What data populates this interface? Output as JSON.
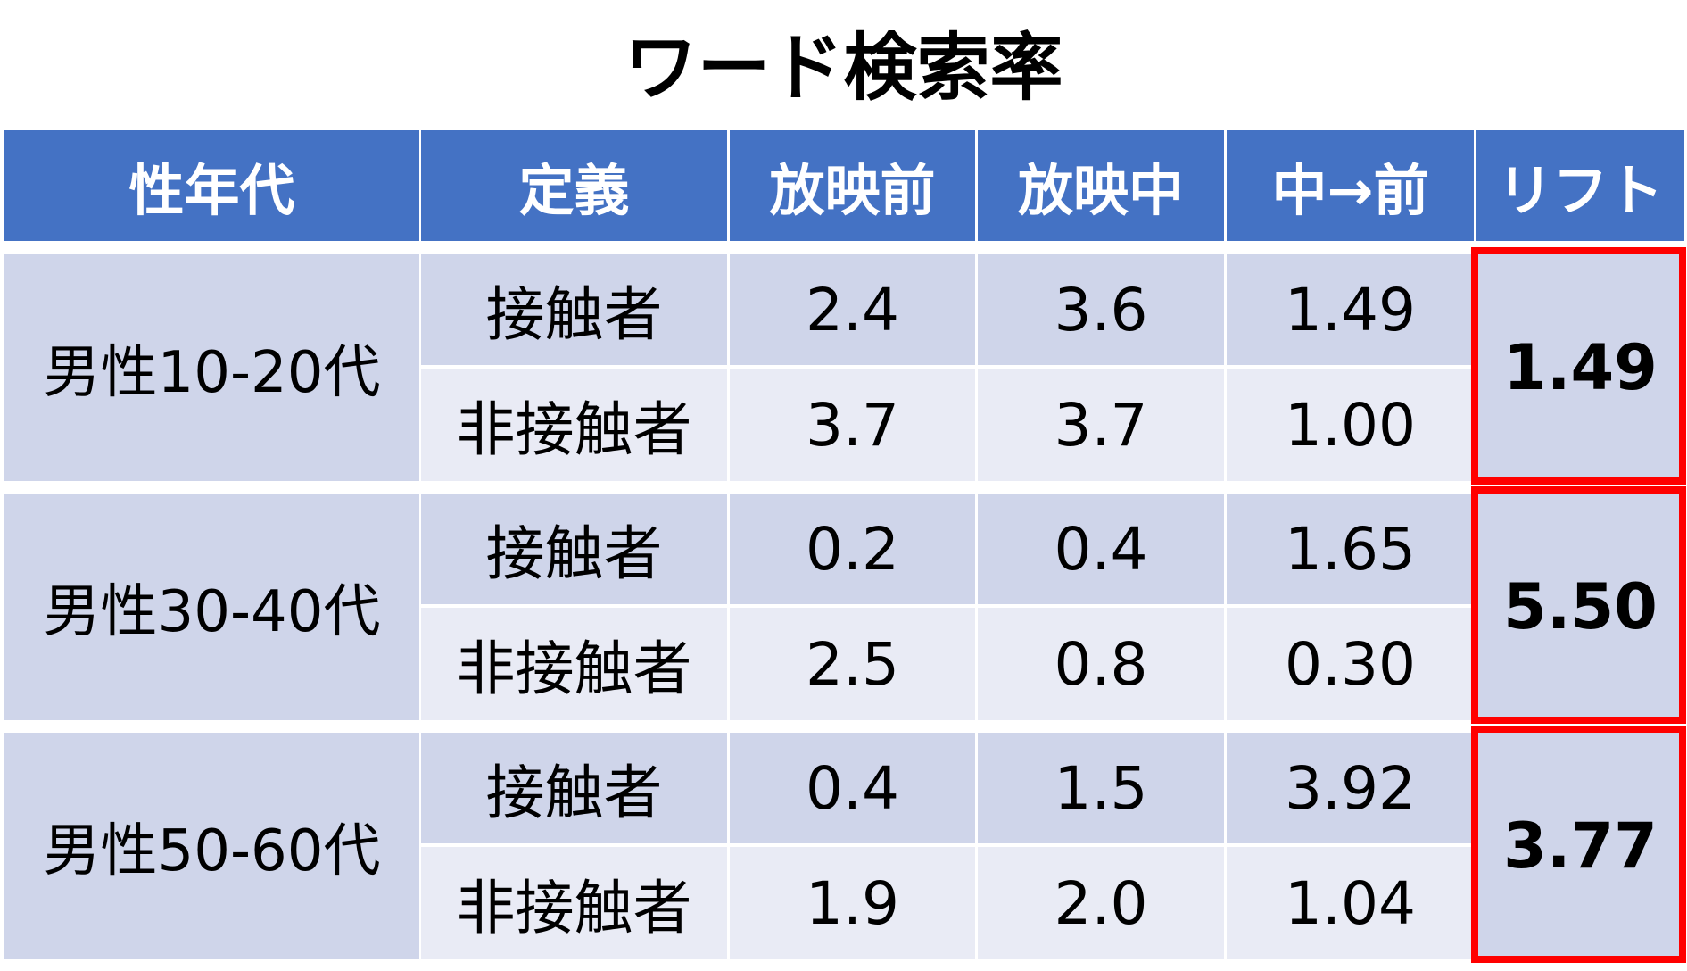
{
  "chart_data": {
    "type": "table",
    "title": "ワード検索率",
    "columns": [
      "性年代",
      "定義",
      "放映前",
      "放映中",
      "中→前",
      "リフト"
    ],
    "groups": [
      {
        "label": "男性10-20代",
        "lift": "1.49",
        "rows": [
          {
            "definition": "接触者",
            "before": "2.4",
            "during": "3.6",
            "ratio": "1.49"
          },
          {
            "definition": "非接触者",
            "before": "3.7",
            "during": "3.7",
            "ratio": "1.00"
          }
        ]
      },
      {
        "label": "男性30-40代",
        "lift": "5.50",
        "rows": [
          {
            "definition": "接触者",
            "before": "0.2",
            "during": "0.4",
            "ratio": "1.65"
          },
          {
            "definition": "非接触者",
            "before": "2.5",
            "during": "0.8",
            "ratio": "0.30"
          }
        ]
      },
      {
        "label": "男性50-60代",
        "lift": "3.77",
        "rows": [
          {
            "definition": "接触者",
            "before": "0.4",
            "during": "1.5",
            "ratio": "3.92"
          },
          {
            "definition": "非接触者",
            "before": "1.9",
            "during": "2.0",
            "ratio": "1.04"
          }
        ]
      }
    ],
    "colors": {
      "header": "#4472c4",
      "header_text": "#ffffff",
      "row_dark": "#cfd5ea",
      "row_light": "#e9ebf5",
      "highlight_border": "#ff0000"
    }
  }
}
